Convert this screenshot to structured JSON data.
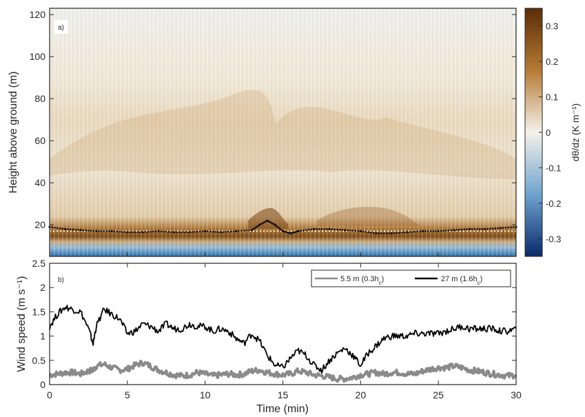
{
  "colors": {
    "axis": "#262626",
    "stable": "#8c510a",
    "neutral": "#f5f0e6",
    "unstable": "#0b5a96",
    "series_low": "#8a8a8a",
    "series_high": "#000000",
    "bl_height_marker": "#111111",
    "reference_line": "#fff6d6"
  },
  "chart_data": [
    {
      "type": "heatmap",
      "panel_label": "a)",
      "xlabel": "",
      "ylabel": "Height above ground (m)",
      "xlim": [
        0,
        30
      ],
      "ylim": [
        5,
        123
      ],
      "yticks": [
        20,
        40,
        60,
        80,
        100,
        120
      ],
      "colorbar": {
        "label": "dθ/dz (K m⁻¹)",
        "range": [
          -0.35,
          0.35
        ],
        "ticks": [
          0.3,
          0.2,
          0.1,
          0,
          -0.1,
          -0.2,
          -0.3
        ],
        "tick_labels": [
          "0.3",
          "0.2",
          "0.1",
          "0",
          "-0.1",
          "-0.2",
          "-0.3"
        ],
        "colormap": "diverging blue-white-brown"
      },
      "reference_line": {
        "style": "dotted",
        "height_m": 17
      },
      "inversion_height_track": {
        "marker": "dots",
        "time_min": [
          0,
          1,
          2,
          3,
          4,
          5,
          6,
          7,
          8,
          9,
          10,
          11,
          12,
          13,
          13.5,
          14,
          14.5,
          15,
          15.5,
          16,
          17,
          18,
          19,
          20,
          21,
          22,
          23,
          24,
          25,
          26,
          27,
          28,
          29,
          30
        ],
        "height_m": [
          19,
          18,
          17.5,
          17,
          17,
          16.5,
          16.5,
          17,
          16.5,
          16.5,
          17,
          16.5,
          17,
          17.5,
          20,
          22,
          20,
          17,
          16,
          17,
          18,
          18,
          17.5,
          17,
          16,
          16,
          16.5,
          17,
          17,
          17.5,
          18,
          18,
          18.5,
          19
        ]
      }
    },
    {
      "type": "line",
      "panel_label": "b)",
      "xlabel": "Time (min)",
      "ylabel": "Wind speed (m s⁻¹)",
      "xlim": [
        0,
        30
      ],
      "ylim": [
        0,
        2.5
      ],
      "xticks": [
        0,
        5,
        10,
        15,
        20,
        25,
        30
      ],
      "yticks": [
        0,
        0.5,
        1,
        1.5,
        2,
        2.5
      ],
      "ytick_labels": [
        "0",
        "0.5",
        "1",
        "1.5",
        "2",
        "2.5"
      ],
      "legend_position": "top-right",
      "x": [
        0,
        0.5,
        1,
        1.5,
        2,
        2.5,
        2.8,
        3,
        3.5,
        4,
        4.5,
        5,
        5.5,
        6,
        6.5,
        7,
        7.5,
        8,
        8.5,
        9,
        9.5,
        10,
        10.5,
        11,
        11.5,
        12,
        12.5,
        13,
        13.5,
        14,
        14.5,
        15,
        15.5,
        16,
        16.5,
        17,
        17.5,
        18,
        18.5,
        19,
        19.5,
        20,
        20.5,
        21,
        21.5,
        22,
        22.5,
        23,
        23.5,
        24,
        24.5,
        25,
        25.5,
        26,
        26.5,
        27,
        27.5,
        28,
        28.5,
        29,
        29.5,
        30
      ],
      "series": [
        {
          "name": "5.5 m (0.3h",
          "name_sub": "c",
          "name_tail": ")",
          "values": [
            0.2,
            0.22,
            0.25,
            0.25,
            0.22,
            0.28,
            0.3,
            0.38,
            0.42,
            0.35,
            0.3,
            0.32,
            0.4,
            0.45,
            0.38,
            0.3,
            0.25,
            0.2,
            0.18,
            0.2,
            0.25,
            0.22,
            0.18,
            0.2,
            0.22,
            0.2,
            0.22,
            0.28,
            0.3,
            0.25,
            0.22,
            0.2,
            0.22,
            0.28,
            0.25,
            0.2,
            0.18,
            0.15,
            0.12,
            0.12,
            0.15,
            0.2,
            0.22,
            0.25,
            0.22,
            0.25,
            0.25,
            0.22,
            0.22,
            0.28,
            0.32,
            0.35,
            0.35,
            0.38,
            0.35,
            0.3,
            0.28,
            0.25,
            0.22,
            0.2,
            0.18,
            0.2
          ]
        },
        {
          "name": "27 m (1.6h",
          "name_sub": "c",
          "name_tail": ")",
          "values": [
            1.2,
            1.45,
            1.6,
            1.55,
            1.5,
            1.15,
            0.85,
            1.2,
            1.55,
            1.45,
            1.35,
            1.05,
            1.1,
            1.25,
            1.2,
            1.1,
            1.25,
            1.15,
            1.15,
            1.25,
            1.2,
            1.2,
            1.1,
            1.15,
            1.1,
            0.95,
            0.85,
            1.05,
            0.9,
            0.6,
            0.4,
            0.35,
            0.55,
            0.7,
            0.6,
            0.4,
            0.3,
            0.5,
            0.65,
            0.75,
            0.6,
            0.4,
            0.65,
            0.8,
            0.95,
            1.0,
            1.0,
            1.0,
            1.05,
            1.05,
            1.05,
            1.05,
            1.1,
            1.15,
            1.2,
            1.15,
            1.15,
            1.15,
            1.15,
            1.1,
            1.1,
            1.15
          ]
        }
      ]
    }
  ]
}
